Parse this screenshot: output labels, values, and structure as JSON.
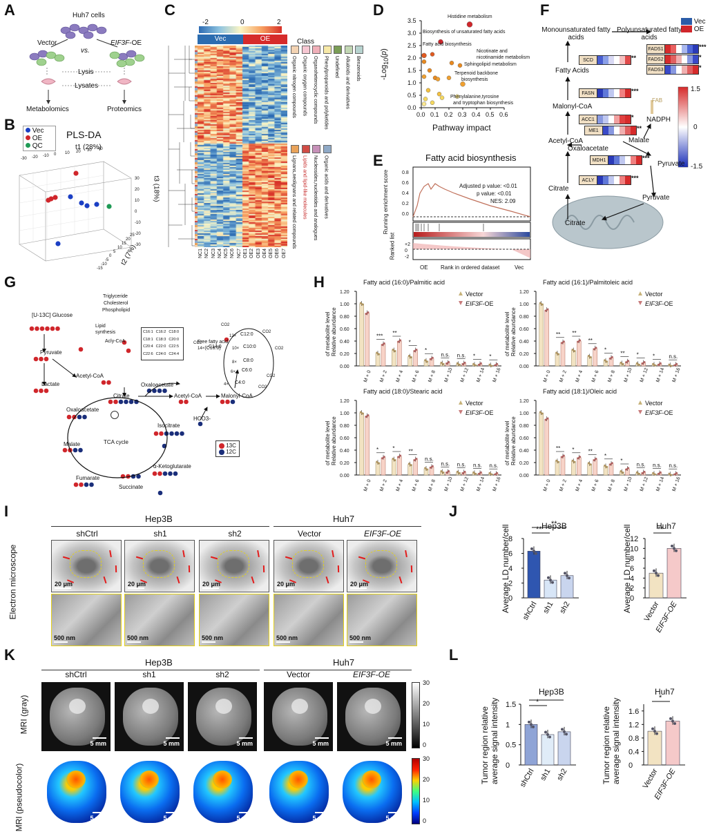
{
  "panels": {
    "A": {
      "label": "A",
      "cells": "Huh7 cells",
      "vector": "Vector",
      "vs": "vs.",
      "oe": "EIF3F-OE",
      "lysis": "Lysis",
      "lysates": "Lysates",
      "metab": "Metabolomics",
      "prot": "Proteomics"
    },
    "B": {
      "label": "B",
      "title": "PLS-DA",
      "legend": [
        "Vec",
        "OE",
        "QC"
      ],
      "legend_colors": [
        "#1b3fc4",
        "#d0262b",
        "#1f9a55"
      ],
      "t1": "t1 (28%)",
      "t2": "t2 (7%)",
      "t3": "t3 (18%)",
      "t1_ticks": [
        "-30",
        "-20",
        "-10",
        "0",
        "10",
        "20",
        "30",
        "40"
      ],
      "t3_ticks": [
        "30",
        "20",
        "10",
        "0",
        "-10",
        "-20",
        "-30"
      ],
      "t2_ticks": [
        "-15",
        "-10",
        "-5",
        "0",
        "5",
        "10",
        "15",
        "20",
        "25"
      ]
    },
    "C": {
      "label": "C",
      "scale_min": "-2",
      "scale_mid": "0",
      "scale_max": "2",
      "vec": "Vec",
      "oe": "OE",
      "class_title": "Class",
      "classes_top": [
        "Organic nitrogen compounds",
        "Organic oxygen compounds",
        "Organoheterocyclic compounds",
        "Phenylpropanoids and polyketides",
        "Undefined",
        "Alkaloids and derivatives",
        "Benzenoids"
      ],
      "classes_top_colors": [
        "#f3d3b3",
        "#f6c7d2",
        "#f0b0b9",
        "#f7e9a8",
        "#7a9d56",
        "#c2d7b4",
        "#b7d3cf"
      ],
      "classes_bottom": [
        "Lignans,neolignans and related compounds",
        "Lipids and lipid-like molecules",
        "Nucleosides,nucleotides and analogues",
        "Organic acids and derivatives"
      ],
      "classes_bottom_colors": [
        "#e9a35a",
        "#d14b45",
        "#c690b8",
        "#8fa9c6"
      ],
      "samples": [
        "NC1",
        "NC2",
        "NC3",
        "NC4",
        "NC5",
        "NC6",
        "NC7",
        "OE1",
        "OE2",
        "OE3",
        "OE4",
        "OE5",
        "OE6",
        "OE7"
      ]
    },
    "D": {
      "label": "D",
      "ylabel": "-Log10(p)",
      "xlabel": "Pathway impact",
      "xticks": [
        "0.0",
        "0.1",
        "0.2",
        "0.3",
        "0.4",
        "0.5",
        "0.6"
      ],
      "yticks": [
        "0.0",
        "0.5",
        "1.0",
        "1.5",
        "2.0",
        "2.5",
        "3.0",
        "3.5"
      ],
      "annotations": [
        "Histidine metabolism",
        "Biosynthesis of unsaturated fatty acids",
        "Fatty acid biosynthesis",
        "Nicotinate and nicotinamide metabolism",
        "Sphingolipid metabolism",
        "Terpenoid backbone biosynthesis",
        "Phenylalanine,tyrosine and tryptophan biosynthesis"
      ]
    },
    "E": {
      "label": "E",
      "title": "Fatty acid biosynthesis",
      "ylabel1": "Running enrichment score",
      "ylabel3": "Ranked list",
      "stats": [
        "Adjusted p value: <0.01",
        "p value: <0.01",
        "NES: 2.09"
      ],
      "xlabel": "Rank in ordered dataset",
      "left": "OE",
      "right": "Vec",
      "yticks": [
        "0.8",
        "0.6",
        "0.4",
        "0.2",
        "0.0"
      ],
      "rticks": [
        "+2",
        "0",
        "-2"
      ]
    },
    "F": {
      "label": "F",
      "legend": [
        "Vec",
        "OE"
      ],
      "legend_colors": [
        "#2b5ca8",
        "#d0262b"
      ],
      "mufa": "Monounsaturated fatty acids",
      "pufa": "Polyunsaturated fatty acids",
      "fa": "Fatty Acids",
      "malonyl": "Malonyl-CoA",
      "acetyl": "Acetyl-CoA",
      "oxaloacetate": "Oxaloacetate",
      "citrate": "Citrate",
      "citrate2": "Citrate",
      "malate": "Malate",
      "pyruvate": "Pyruvate",
      "pyruvate2": "Pyruvate",
      "nadph": "NADPH",
      "fab": "FAB",
      "genes": [
        "SCD",
        "FADS1",
        "FADS2",
        "FADS3",
        "FASN",
        "ACC1",
        "ME1",
        "MDH1",
        "ACLY"
      ],
      "sig": [
        "**",
        "***",
        "*",
        "*",
        "***",
        "*",
        "**",
        "***",
        "***"
      ],
      "scale": [
        "1.5",
        "0",
        "-1.5"
      ]
    },
    "G": {
      "label": "G",
      "glucose": "[U-13C] Glucose",
      "pyruvate": "Pyruvate",
      "lactate": "Lactate",
      "acetyl": "Acetyl-CoA",
      "citrate": "Citrate",
      "oxaloacetate": "Oxaloacetate",
      "isocitrate": "Isocitrate",
      "akg": "α-Ketoglutarate",
      "succinate": "Succinate",
      "fumarate": "Fumarate",
      "malate": "Malate",
      "tca": "TCA cycle",
      "oxaloacetate2": "Oxaloacetate",
      "acetyl2": "Acetyl-CoA",
      "malonyl": "Malonyl-CoA",
      "hco3": "HCO3-",
      "co2": "CO2",
      "lipid": "Lipid synthesis",
      "trig": "Triglyceride",
      "chol": "Cholesterol",
      "phos": "Phospholipid",
      "acyl": "Acly-CoA",
      "ffa": "Free fatty acid (C16:0)",
      "legend": [
        "13C",
        "12C"
      ],
      "chain": [
        "C16:1",
        "C16:2",
        "C18:0",
        "C18:1",
        "C18:3",
        "C20:0",
        "C20:4",
        "C22:0",
        "C22:5",
        "C22:6",
        "C24:0",
        "C24:4"
      ]
    },
    "H": {
      "label": "H",
      "legend": [
        "Vector",
        "EIF3F-OE"
      ],
      "ylabel": "Relative abundance of metabolite level",
      "xcats": [
        "M + 0",
        "M + 2",
        "M + 4",
        "M + 6",
        "M + 8",
        "M + 10",
        "M + 12",
        "M + 14",
        "M + 16"
      ],
      "yticks": [
        "0.00",
        "0.20",
        "0.40",
        "0.60",
        "0.80",
        "1.00",
        "1.20"
      ]
    },
    "I": {
      "label": "I",
      "group1": "Hep3B",
      "group2": "Huh7",
      "conds": [
        "shCtrl",
        "sh1",
        "sh2",
        "Vector",
        "EIF3F-OE"
      ],
      "row_label": "Electron microscope",
      "scale1": "20 μm",
      "scale2": "500 nm"
    },
    "J": {
      "label": "J",
      "ylabel": "Average LD number/cell"
    },
    "K": {
      "label": "K",
      "group1": "Hep3B",
      "group2": "Huh7",
      "conds": [
        "shCtrl",
        "sh1",
        "sh2",
        "Vector",
        "EIF3F-OE"
      ],
      "row1": "MRI (gray)",
      "row2": "MRI (pseudocolor)",
      "scale": "5 mm",
      "cbar_ticks": [
        "30",
        "20",
        "10",
        "0"
      ]
    },
    "L": {
      "label": "L",
      "ylabel": "Tumor region relative average signal intensity"
    }
  },
  "chart_data": [
    {
      "type": "bar",
      "title": "Fatty acid (16:0)/Palmitic acid",
      "categories": [
        "M + 0",
        "M + 2",
        "M + 4",
        "M + 6",
        "M + 8",
        "M + 10",
        "M + 12",
        "M + 14",
        "M + 16"
      ],
      "ylim": [
        0,
        1.2
      ],
      "series": [
        {
          "name": "Vector",
          "values": [
            1.0,
            0.2,
            0.25,
            0.15,
            0.08,
            0.04,
            0.03,
            0.02,
            0.01
          ]
        },
        {
          "name": "EIF3F-OE",
          "values": [
            0.85,
            0.35,
            0.4,
            0.25,
            0.12,
            0.05,
            0.04,
            0.03,
            0.02
          ]
        }
      ],
      "sig": [
        "",
        "***",
        "**",
        "*",
        "*",
        "n.s.",
        "n.s.",
        "*",
        "*"
      ]
    },
    {
      "type": "bar",
      "title": "Fatty acid (16:1)/Palmitoleic acid",
      "categories": [
        "M + 0",
        "M + 2",
        "M + 4",
        "M + 6",
        "M + 8",
        "M + 10",
        "M + 12",
        "M + 14",
        "M + 16"
      ],
      "ylim": [
        0,
        1.2
      ],
      "series": [
        {
          "name": "Vector",
          "values": [
            1.0,
            0.2,
            0.25,
            0.15,
            0.08,
            0.04,
            0.03,
            0.02,
            0.01
          ]
        },
        {
          "name": "EIF3F-OE",
          "values": [
            0.9,
            0.38,
            0.4,
            0.28,
            0.13,
            0.07,
            0.05,
            0.03,
            0.02
          ]
        }
      ],
      "sig": [
        "",
        "**",
        "**",
        "**",
        "*",
        "**",
        "*",
        "*",
        "n.s."
      ]
    },
    {
      "type": "bar",
      "title": "Fatty acid (18:0)/Stearic acid",
      "categories": [
        "M + 0",
        "M + 2",
        "M + 4",
        "M + 6",
        "M + 8",
        "M + 10",
        "M + 12",
        "M + 14",
        "M + 16"
      ],
      "ylim": [
        0,
        1.2
      ],
      "series": [
        {
          "name": "Vector",
          "values": [
            1.0,
            0.2,
            0.25,
            0.17,
            0.1,
            0.05,
            0.04,
            0.03,
            0.02
          ]
        },
        {
          "name": "EIF3F-OE",
          "values": [
            0.95,
            0.28,
            0.3,
            0.25,
            0.13,
            0.05,
            0.04,
            0.03,
            0.02
          ]
        }
      ],
      "sig": [
        "",
        "*",
        "*",
        "**",
        "n.s.",
        "n.s.",
        "n.s.",
        "n.s.",
        "n.s."
      ]
    },
    {
      "type": "bar",
      "title": "Fatty acid (18:1)/Oleic acid",
      "categories": [
        "M + 0",
        "M + 2",
        "M + 4",
        "M + 6",
        "M + 8",
        "M + 10",
        "M + 12",
        "M + 14",
        "M + 16"
      ],
      "ylim": [
        0,
        1.2
      ],
      "series": [
        {
          "name": "Vector",
          "values": [
            1.0,
            0.22,
            0.22,
            0.18,
            0.14,
            0.05,
            0.03,
            0.02,
            0.01
          ]
        },
        {
          "name": "EIF3F-OE",
          "values": [
            0.9,
            0.3,
            0.28,
            0.25,
            0.18,
            0.1,
            0.04,
            0.03,
            0.02
          ]
        }
      ],
      "sig": [
        "",
        "**",
        "*",
        "**",
        "*",
        "*",
        "n.s.",
        "n.s.",
        "n.s."
      ]
    },
    {
      "type": "bar",
      "title": "Hep3B",
      "categories": [
        "shCtrl",
        "sh1",
        "sh2"
      ],
      "values": [
        6.3,
        2.4,
        3.0
      ],
      "ylim": [
        0,
        8
      ],
      "yticks": [
        0,
        2,
        4,
        6,
        8
      ],
      "sig": [
        "**",
        "**"
      ],
      "ylabel": "Average LD number/cell"
    },
    {
      "type": "bar",
      "title": "Huh7",
      "categories": [
        "Vector",
        "EIF3F-OE"
      ],
      "values": [
        5.0,
        10.0
      ],
      "ylim": [
        0,
        12
      ],
      "yticks": [
        0,
        2,
        4,
        6,
        8,
        10,
        12
      ],
      "sig": [
        "**"
      ],
      "ylabel": "Average LD number/cell"
    },
    {
      "type": "bar",
      "title": "Hep3B",
      "categories": [
        "shCtrl",
        "sh1",
        "sh2"
      ],
      "values": [
        1.0,
        0.75,
        0.82
      ],
      "ylim": [
        0,
        1.5
      ],
      "yticks": [
        0.0,
        0.5,
        1.0,
        1.5
      ],
      "sig": [
        "*",
        "*"
      ],
      "ylabel": "Tumor region relative average signal intensity"
    },
    {
      "type": "bar",
      "title": "Huh7",
      "categories": [
        "Vector",
        "EIF3F-OE"
      ],
      "values": [
        1.0,
        1.3
      ],
      "ylim": [
        0,
        1.8
      ],
      "yticks": [
        0.0,
        0.4,
        0.8,
        1.2,
        1.6
      ],
      "sig": [
        "*"
      ],
      "ylabel": "Tumor region relative average signal intensity"
    }
  ]
}
